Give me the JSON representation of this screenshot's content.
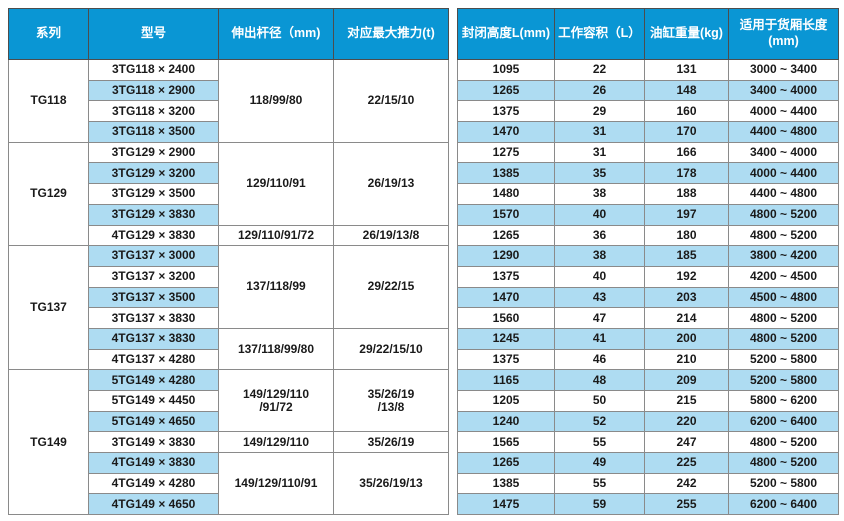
{
  "colors": {
    "header_bg": "#0a96d4",
    "stripe_bg": "#aedcf2",
    "grid_line": "#8a8a8a",
    "outer_border": "#4d4d4d",
    "body_text": "#1a1a1a",
    "header_text": "#ffffff"
  },
  "header": {
    "series": "系列",
    "model": "型号",
    "rod": "伸出杆径（mm)",
    "thrust": "对应最大推力(t)",
    "closed_height": "封闭高度L(mm)",
    "volume": "工作容积（L）",
    "weight": "油缸重量(kg)",
    "cargo_length": "适用于货厢长度\n(mm)"
  },
  "rows": [
    {
      "series": "TG118",
      "series_span": 4,
      "model": "3TG118 × 2400",
      "rod": "118/99/80",
      "thrust": "22/15/10",
      "rod_span": 4,
      "closed_height": "1095",
      "volume": "22",
      "weight": "131",
      "cargo_length": "3000 ~ 3400"
    },
    {
      "model": "3TG118 × 2900",
      "closed_height": "1265",
      "volume": "26",
      "weight": "148",
      "cargo_length": "3400 ~ 4000"
    },
    {
      "model": "3TG118 × 3200",
      "closed_height": "1375",
      "volume": "29",
      "weight": "160",
      "cargo_length": "4000 ~ 4400"
    },
    {
      "model": "3TG118 × 3500",
      "closed_height": "1470",
      "volume": "31",
      "weight": "170",
      "cargo_length": "4400 ~ 4800"
    },
    {
      "series": "TG129",
      "series_span": 5,
      "model": "3TG129 × 2900",
      "rod": "129/110/91",
      "thrust": "26/19/13",
      "rod_span": 4,
      "closed_height": "1275",
      "volume": "31",
      "weight": "166",
      "cargo_length": "3400 ~ 4000"
    },
    {
      "model": "3TG129 × 3200",
      "closed_height": "1385",
      "volume": "35",
      "weight": "178",
      "cargo_length": "4000 ~ 4400"
    },
    {
      "model": "3TG129 × 3500",
      "closed_height": "1480",
      "volume": "38",
      "weight": "188",
      "cargo_length": "4400 ~ 4800"
    },
    {
      "model": "3TG129 × 3830",
      "closed_height": "1570",
      "volume": "40",
      "weight": "197",
      "cargo_length": "4800 ~ 5200"
    },
    {
      "model": "4TG129 × 3830",
      "rod": "129/110/91/72",
      "thrust": "26/19/13/8",
      "rod_span": 1,
      "closed_height": "1265",
      "volume": "36",
      "weight": "180",
      "cargo_length": "4800 ~ 5200"
    },
    {
      "series": "TG137",
      "series_span": 6,
      "model": "3TG137 × 3000",
      "rod": "137/118/99",
      "thrust": "29/22/15",
      "rod_span": 4,
      "closed_height": "1290",
      "volume": "38",
      "weight": "185",
      "cargo_length": "3800 ~ 4200"
    },
    {
      "model": "3TG137 × 3200",
      "closed_height": "1375",
      "volume": "40",
      "weight": "192",
      "cargo_length": "4200 ~ 4500"
    },
    {
      "model": "3TG137 × 3500",
      "closed_height": "1470",
      "volume": "43",
      "weight": "203",
      "cargo_length": "4500 ~ 4800"
    },
    {
      "model": "3TG137 × 3830",
      "closed_height": "1560",
      "volume": "47",
      "weight": "214",
      "cargo_length": "4800 ~ 5200"
    },
    {
      "model": "4TG137 × 3830",
      "rod": "137/118/99/80",
      "thrust": "29/22/15/10",
      "rod_span": 2,
      "closed_height": "1245",
      "volume": "41",
      "weight": "200",
      "cargo_length": "4800 ~ 5200"
    },
    {
      "model": "4TG137 × 4280",
      "closed_height": "1375",
      "volume": "46",
      "weight": "210",
      "cargo_length": "5200 ~ 5800"
    },
    {
      "series": "TG149",
      "series_span": 7,
      "model": "5TG149 × 4280",
      "rod": "149/129/110\n/91/72",
      "thrust": "35/26/19\n/13/8",
      "rod_span": 3,
      "closed_height": "1165",
      "volume": "48",
      "weight": "209",
      "cargo_length": "5200 ~ 5800"
    },
    {
      "model": "5TG149 × 4450",
      "closed_height": "1205",
      "volume": "50",
      "weight": "215",
      "cargo_length": "5800 ~ 6200"
    },
    {
      "model": "5TG149 × 4650",
      "closed_height": "1240",
      "volume": "52",
      "weight": "220",
      "cargo_length": "6200 ~ 6400"
    },
    {
      "model": "3TG149 × 3830",
      "rod": "149/129/110",
      "thrust": "35/26/19",
      "rod_span": 1,
      "closed_height": "1565",
      "volume": "55",
      "weight": "247",
      "cargo_length": "4800 ~ 5200"
    },
    {
      "model": "4TG149 × 3830",
      "rod": "149/129/110/91",
      "thrust": "35/26/19/13",
      "rod_span": 3,
      "closed_height": "1265",
      "volume": "49",
      "weight": "225",
      "cargo_length": "4800 ~ 5200"
    },
    {
      "model": "4TG149 × 4280",
      "closed_height": "1385",
      "volume": "55",
      "weight": "242",
      "cargo_length": "5200 ~ 5800"
    },
    {
      "model": "4TG149 × 4650",
      "closed_height": "1475",
      "volume": "59",
      "weight": "255",
      "cargo_length": "6200 ~ 6400"
    }
  ]
}
